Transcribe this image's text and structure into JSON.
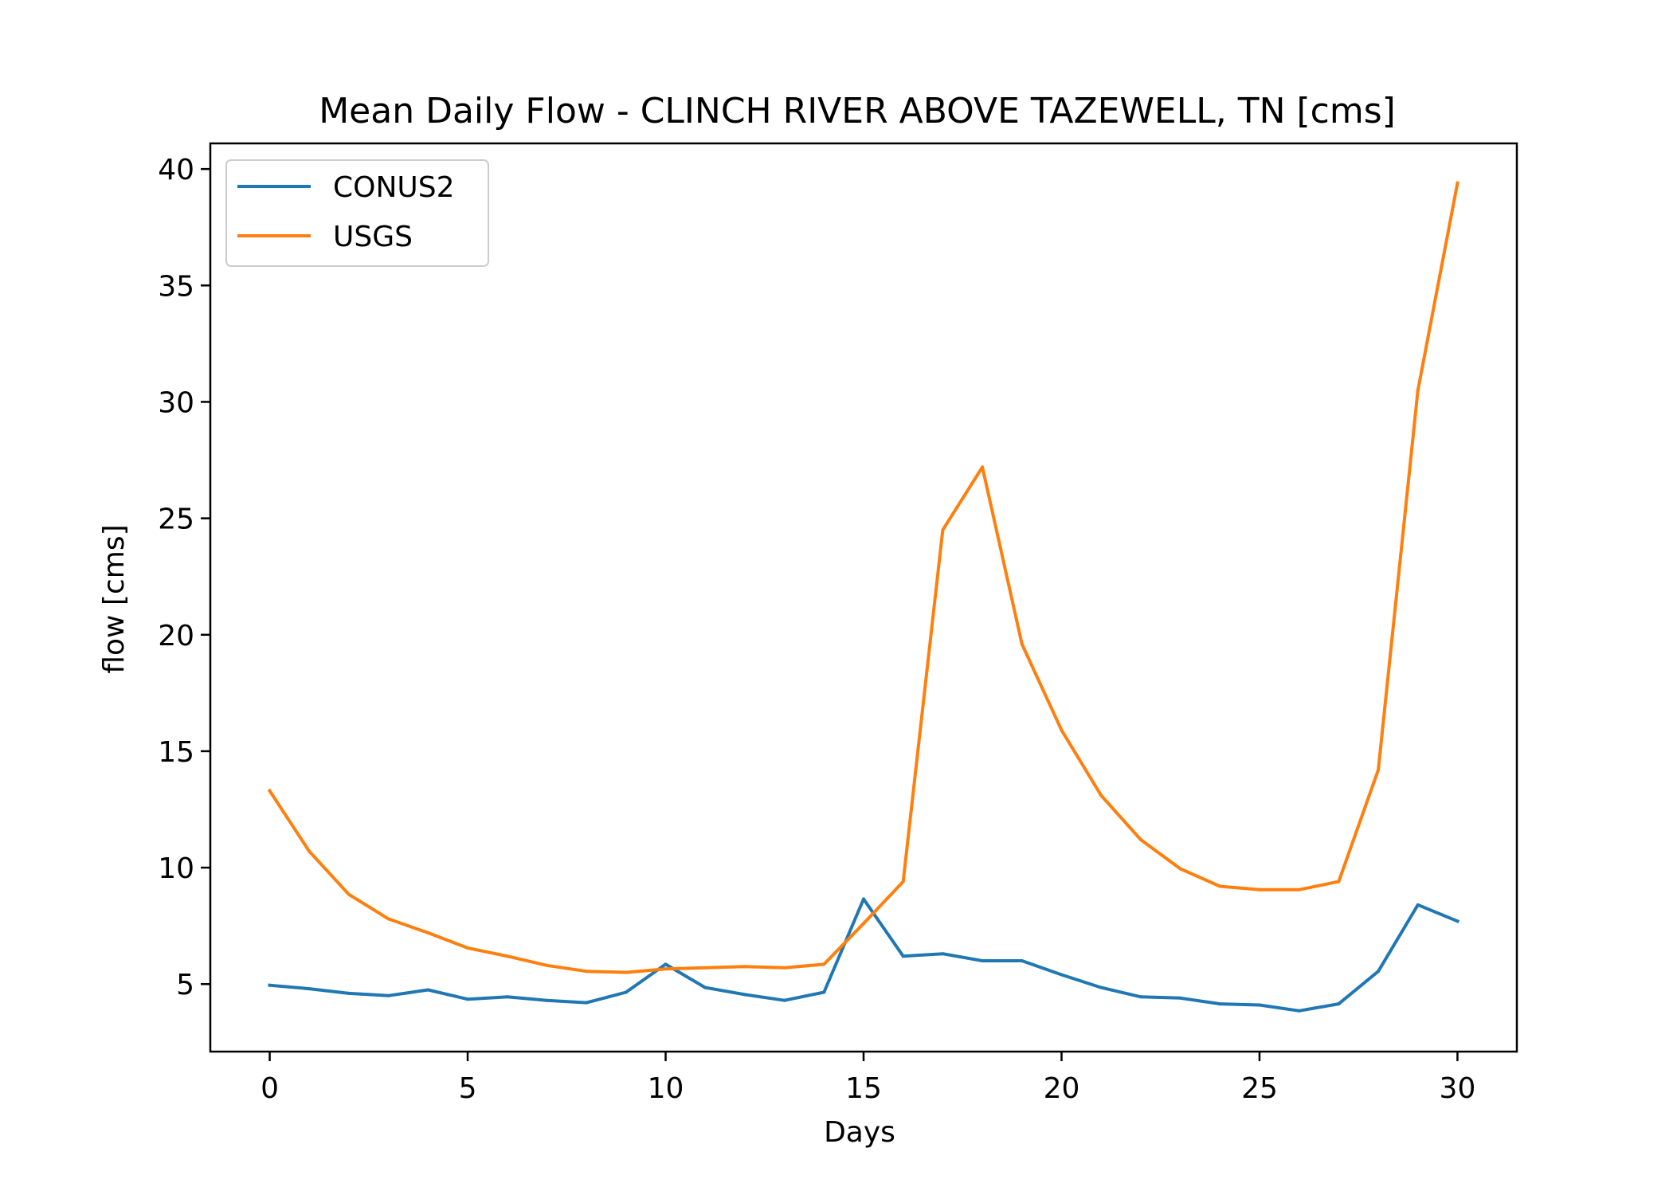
{
  "chart_data": {
    "type": "line",
    "title": "Mean Daily Flow - CLINCH RIVER ABOVE TAZEWELL, TN [cms]",
    "xlabel": "Days",
    "ylabel": "flow [cms]",
    "xlim": [
      -1.5,
      31.5
    ],
    "ylim": [
      2.1,
      41.1
    ],
    "xticks": [
      0,
      5,
      10,
      15,
      20,
      25,
      30
    ],
    "yticks": [
      5,
      10,
      15,
      20,
      25,
      30,
      35,
      40
    ],
    "xtick_labels": [
      "0",
      "5",
      "10",
      "15",
      "20",
      "25",
      "30"
    ],
    "ytick_labels": [
      "5",
      "10",
      "15",
      "20",
      "25",
      "30",
      "35",
      "40"
    ],
    "grid": false,
    "legend_position": "top-left",
    "x": [
      0,
      1,
      2,
      3,
      4,
      5,
      6,
      7,
      8,
      9,
      10,
      11,
      12,
      13,
      14,
      15,
      16,
      17,
      18,
      19,
      20,
      21,
      22,
      23,
      24,
      25,
      26,
      27,
      28,
      29,
      30
    ],
    "series": [
      {
        "name": "CONUS2",
        "color": "#1f77b4",
        "values": [
          4.95,
          4.8,
          4.6,
          4.5,
          4.75,
          4.35,
          4.45,
          4.3,
          4.2,
          4.65,
          5.85,
          4.85,
          4.55,
          4.3,
          4.65,
          8.65,
          6.2,
          6.3,
          6.0,
          6.0,
          5.4,
          4.85,
          4.45,
          4.4,
          4.15,
          4.1,
          3.85,
          4.15,
          5.55,
          8.4,
          7.7
        ]
      },
      {
        "name": "USGS",
        "color": "#ff7f0e",
        "values": [
          13.3,
          10.7,
          8.85,
          7.8,
          7.2,
          6.55,
          6.2,
          5.8,
          5.55,
          5.5,
          5.65,
          5.7,
          5.75,
          5.7,
          5.85,
          7.6,
          9.4,
          24.5,
          27.2,
          19.6,
          15.9,
          13.1,
          11.2,
          9.95,
          9.2,
          9.05,
          9.05,
          9.4,
          14.2,
          30.5,
          39.4
        ]
      }
    ]
  }
}
